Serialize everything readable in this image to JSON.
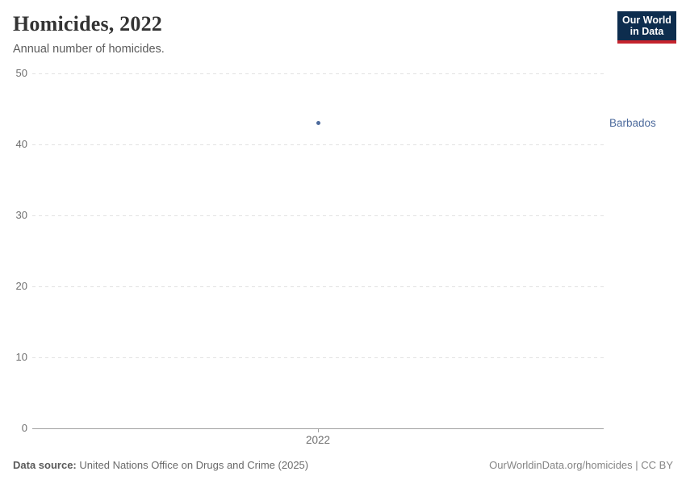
{
  "header": {
    "title": "Homicides, 2022",
    "subtitle": "Annual number of homicides.",
    "logo": {
      "line1": "Our World",
      "line2": "in Data"
    }
  },
  "chart_data": {
    "type": "scatter",
    "title": "Homicides, 2022",
    "subtitle": "Annual number of homicides.",
    "series": [
      {
        "name": "Barbados",
        "x": [
          2022
        ],
        "values": [
          43
        ]
      }
    ],
    "entity_label": "Barbados",
    "xticks": [
      2022
    ],
    "yticks": [
      0,
      10,
      20,
      30,
      40,
      50
    ],
    "ylim": [
      0,
      50
    ],
    "xlabel": "",
    "ylabel": "",
    "grid": "horizontal-dashed",
    "legend_position": "right-of-point",
    "colors": {
      "point": "#4c6a9c",
      "entity_label": "#4c6a9c",
      "gridline": "#e2e2e2",
      "axis_line": "#a1a1a1",
      "tick_label": "#6e6e6e",
      "logo_bg": "#0d2d4e",
      "logo_accent": "#c5232d"
    }
  },
  "footer": {
    "source_label": "Data source:",
    "source_text": "United Nations Office on Drugs and Crime (2025)",
    "link_text": "OurWorldinData.org/homicides | CC BY"
  }
}
